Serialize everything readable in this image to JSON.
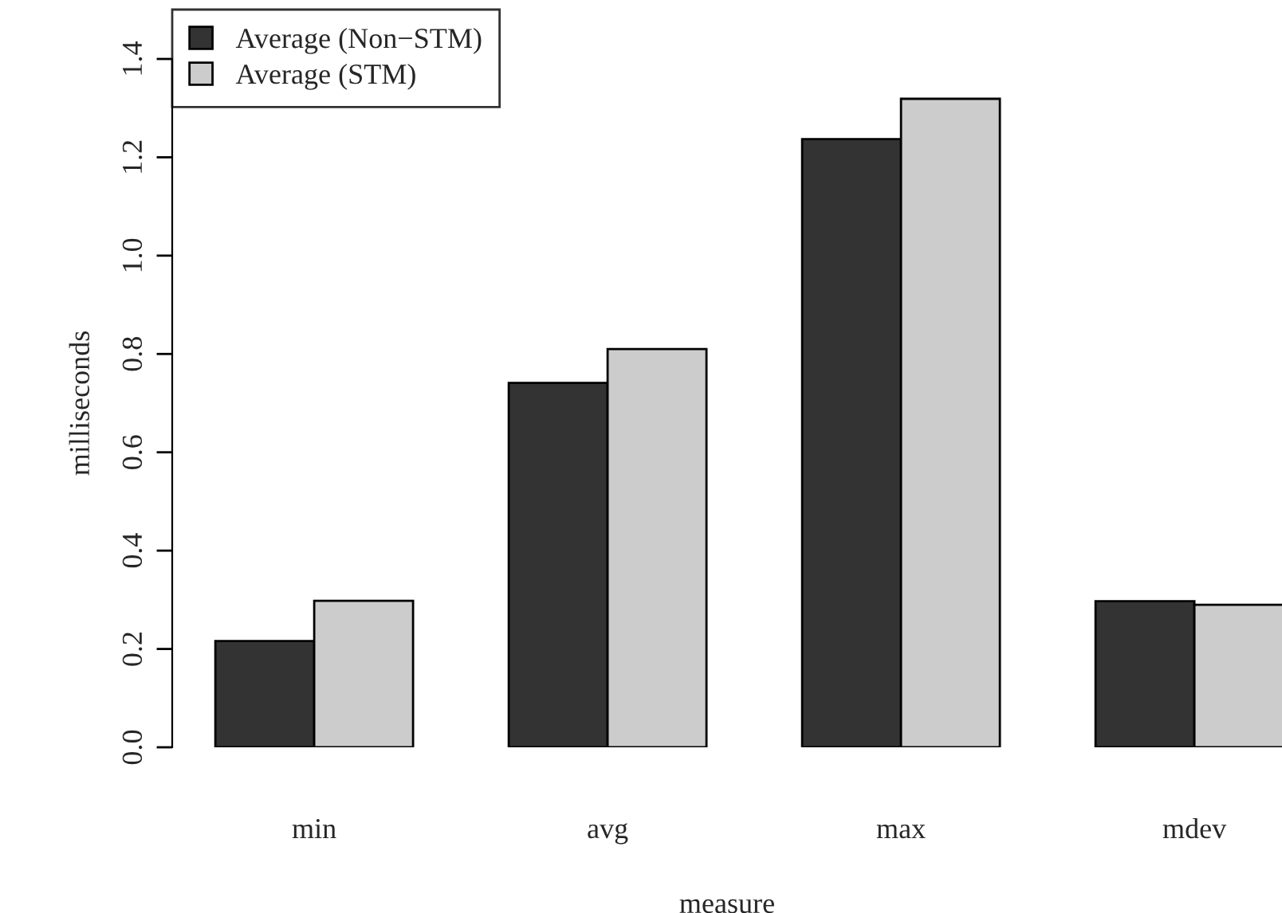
{
  "chart_data": {
    "type": "bar",
    "xlabel": "measure",
    "ylabel": "milliseconds",
    "categories": [
      "min",
      "avg",
      "max",
      "mdev"
    ],
    "series": [
      {
        "name": "Average (Non−STM)",
        "color": "#333333",
        "values": [
          0.216,
          0.741,
          1.237,
          0.297
        ]
      },
      {
        "name": "Average (STM)",
        "color": "#cccccc",
        "values": [
          0.298,
          0.81,
          1.319,
          0.29
        ]
      }
    ],
    "ylim": [
      0,
      1.4
    ],
    "yticks": [
      {
        "value": 0,
        "label": "0.0"
      },
      {
        "value": 0.2,
        "label": "0.2"
      },
      {
        "value": 0.4,
        "label": "0.4"
      },
      {
        "value": 0.6,
        "label": "0.6"
      },
      {
        "value": 0.8,
        "label": "0.8"
      },
      {
        "value": 1.0,
        "label": "1.0"
      },
      {
        "value": 1.2,
        "label": "1.2"
      },
      {
        "value": 1.4,
        "label": "1.4"
      }
    ],
    "grid": false,
    "legend": "top left"
  }
}
